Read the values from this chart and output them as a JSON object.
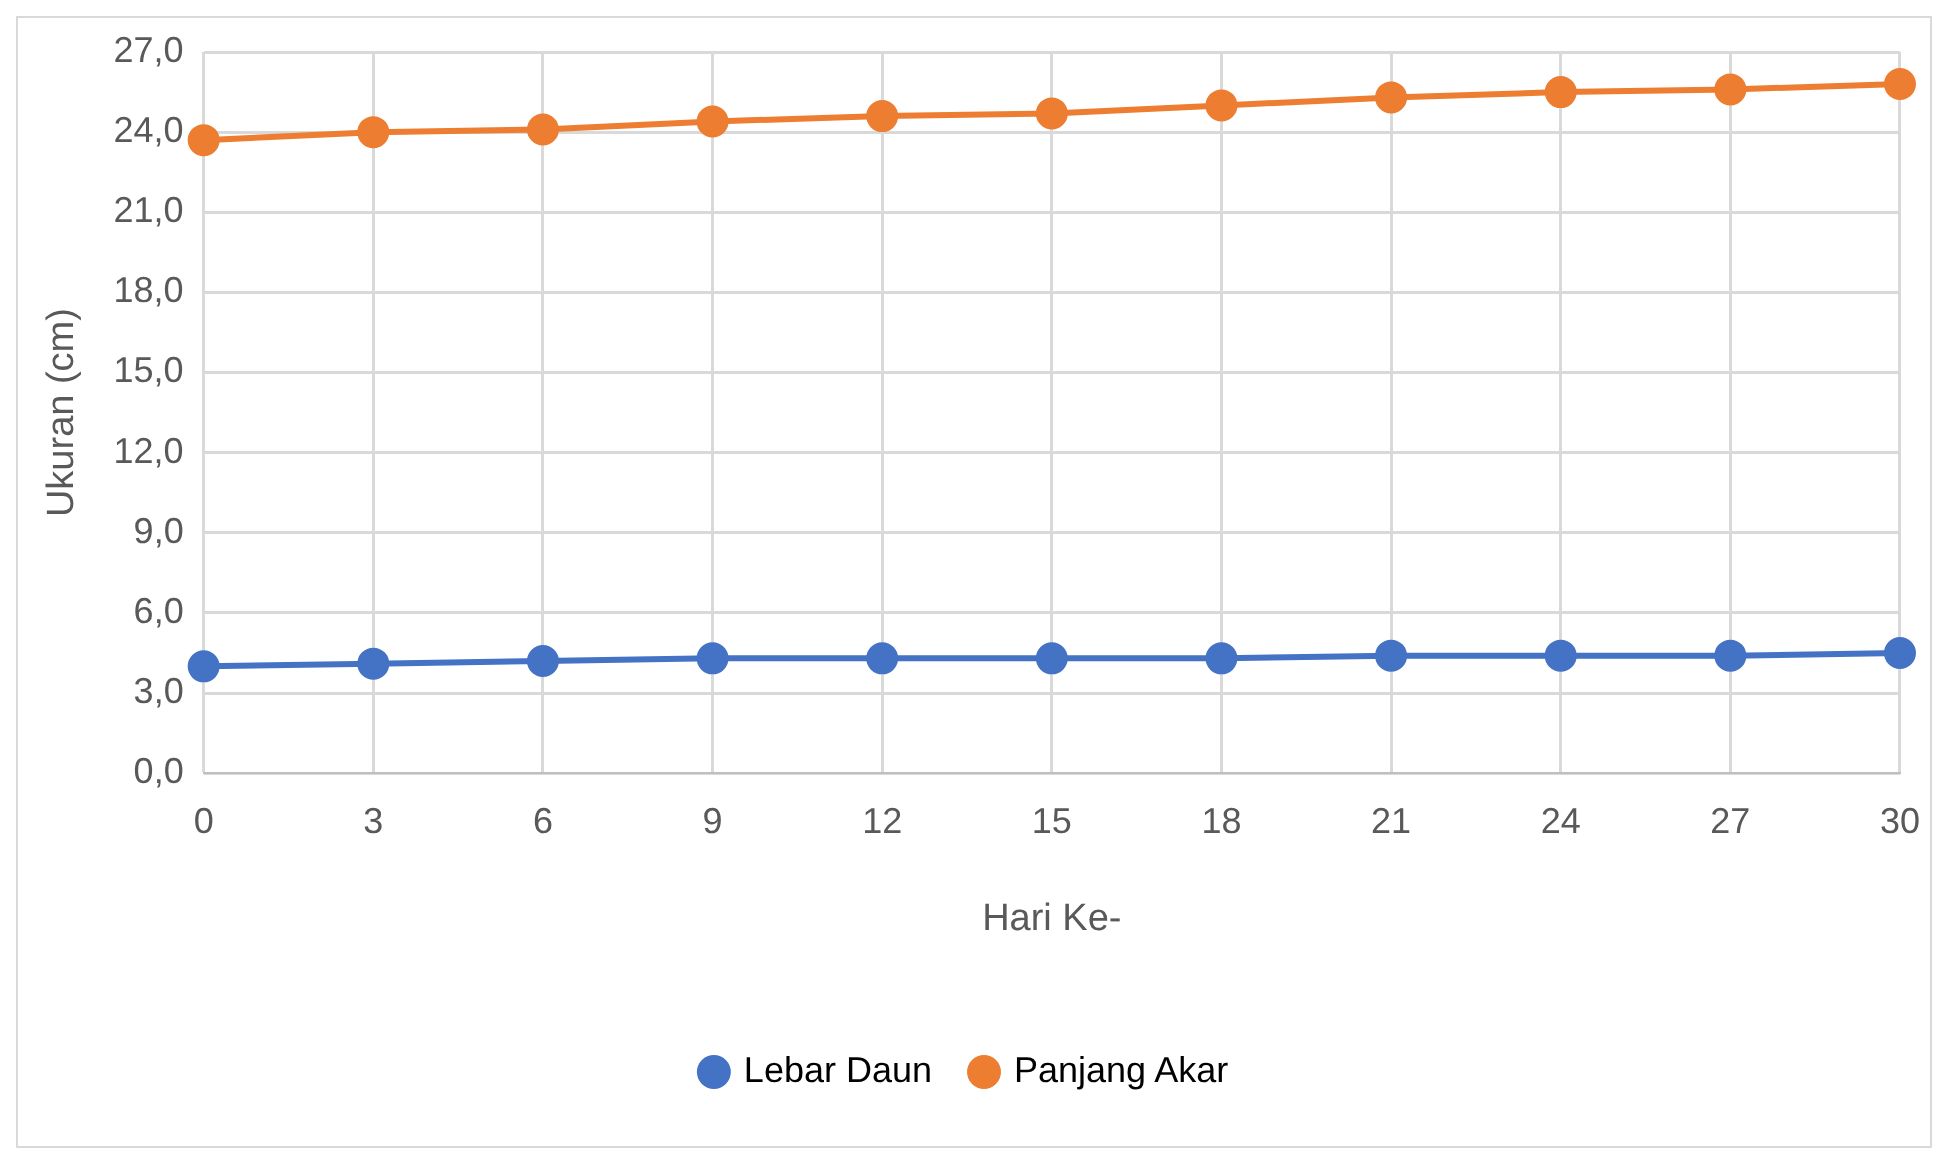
{
  "chart_data": {
    "type": "line",
    "xlabel": "Hari Ke-",
    "ylabel": "Ukuran (cm)",
    "categories": [
      "0",
      "3",
      "6",
      "9",
      "12",
      "15",
      "18",
      "21",
      "24",
      "27",
      "30"
    ],
    "series": [
      {
        "name": "Lebar Daun",
        "color": "#4472c4",
        "values": [
          4.0,
          4.1,
          4.2,
          4.3,
          4.3,
          4.3,
          4.3,
          4.4,
          4.4,
          4.4,
          4.5
        ]
      },
      {
        "name": "Panjang Akar",
        "color": "#ed7d31",
        "values": [
          23.7,
          24.0,
          24.1,
          24.4,
          24.6,
          24.7,
          25.0,
          25.3,
          25.5,
          25.6,
          25.8
        ]
      }
    ],
    "ylim": [
      0,
      27
    ],
    "yticks": [
      {
        "value": 0,
        "label": "0,0"
      },
      {
        "value": 3,
        "label": "3,0"
      },
      {
        "value": 6,
        "label": "6,0"
      },
      {
        "value": 9,
        "label": "9,0"
      },
      {
        "value": 12,
        "label": "12,0"
      },
      {
        "value": 15,
        "label": "15,0"
      },
      {
        "value": 18,
        "label": "18,0"
      },
      {
        "value": 21,
        "label": "21,0"
      },
      {
        "value": 24,
        "label": "24,0"
      },
      {
        "value": 27,
        "label": "27,0"
      }
    ],
    "grid": true,
    "legend": "bottom",
    "marker": "circle",
    "line_style": "solid"
  }
}
